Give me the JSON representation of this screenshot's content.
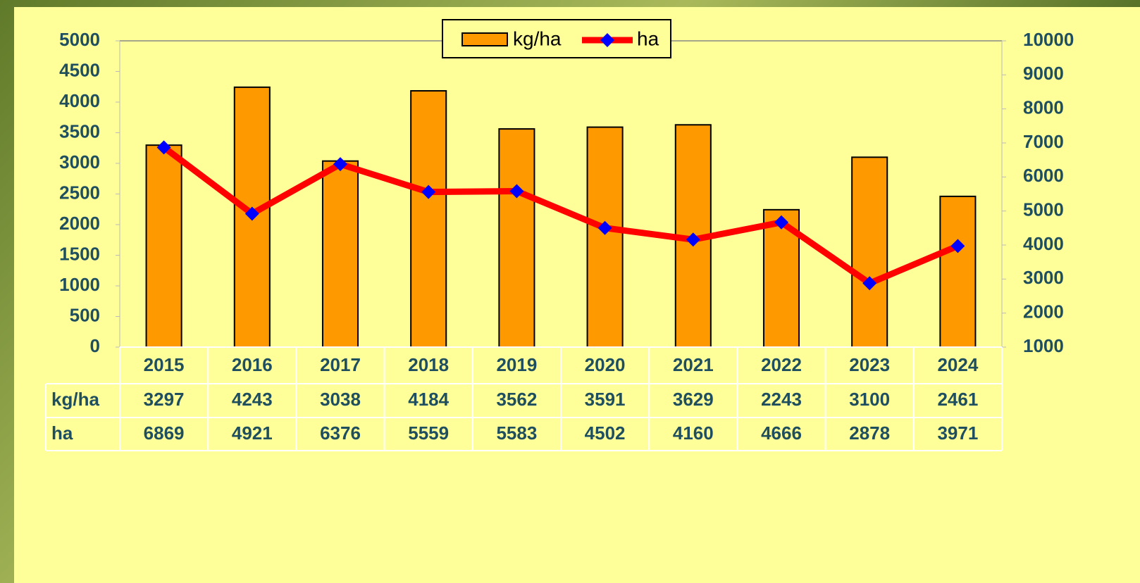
{
  "chart_data": {
    "type": "bar_line",
    "categories": [
      "2015",
      "2016",
      "2017",
      "2018",
      "2019",
      "2020",
      "2021",
      "2022",
      "2023",
      "2024"
    ],
    "series": [
      {
        "name": "kg/ha",
        "color": "#ff9900",
        "values": [
          3297,
          4243,
          3038,
          4184,
          3562,
          3591,
          3629,
          2243,
          3100,
          2461
        ]
      },
      {
        "name": "ha",
        "color": "#ff0000",
        "marker_color": "#0000ff",
        "axis": "y2",
        "values": [
          6869,
          4921,
          6376,
          5559,
          5583,
          4502,
          4160,
          4666,
          2878,
          3971
        ]
      }
    ],
    "ylim": [
      0,
      5000
    ],
    "yticks": [
      0,
      500,
      1000,
      1500,
      2000,
      2500,
      3000,
      3500,
      4000,
      4500,
      5000
    ],
    "y2lim": [
      1000,
      10000
    ],
    "y2ticks": [
      1000,
      2000,
      3000,
      4000,
      5000,
      6000,
      7000,
      8000,
      9000,
      10000
    ],
    "grid": false,
    "legend": "top"
  }
}
